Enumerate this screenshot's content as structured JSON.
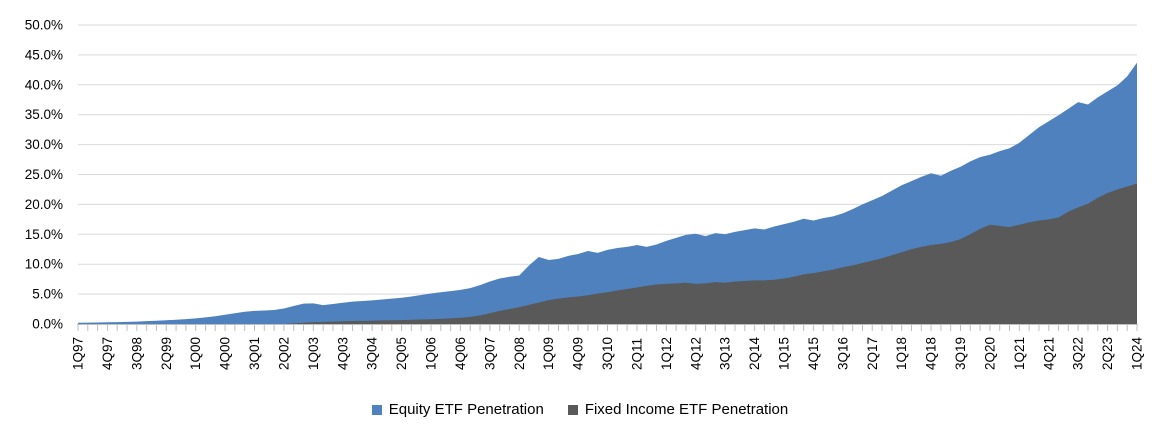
{
  "chart_data": {
    "type": "area",
    "title": "",
    "x_frequency": "quarterly",
    "x_start": "1Q97",
    "x_end": "1Q24",
    "x_tick_labels": [
      "1Q97",
      "4Q97",
      "3Q98",
      "2Q99",
      "1Q00",
      "4Q00",
      "3Q01",
      "2Q02",
      "1Q03",
      "4Q03",
      "3Q04",
      "2Q05",
      "1Q06",
      "4Q06",
      "3Q07",
      "2Q08",
      "1Q09",
      "4Q09",
      "3Q10",
      "2Q11",
      "1Q12",
      "4Q12",
      "3Q13",
      "2Q14",
      "1Q15",
      "4Q15",
      "3Q16",
      "2Q17",
      "1Q18",
      "4Q18",
      "3Q19",
      "2Q20",
      "1Q21",
      "4Q21",
      "3Q22",
      "2Q23",
      "1Q24"
    ],
    "x_label_every_n_points": 3,
    "y_tick_labels": [
      "0.0%",
      "5.0%",
      "10.0%",
      "15.0%",
      "20.0%",
      "25.0%",
      "30.0%",
      "35.0%",
      "40.0%",
      "45.0%",
      "50.0%"
    ],
    "ylim": [
      0,
      50
    ],
    "y_unit": "%",
    "grid": "horizontal",
    "legend_position": "bottom",
    "overlap_mode": "overlaid-not-stacked",
    "colors": {
      "equity": "#4E81BD",
      "fixed_income": "#595959",
      "gridline": "#D9D9D9",
      "axis": "#BFBFBF",
      "text": "#000000"
    },
    "series": [
      {
        "name": "Equity ETF Penetration",
        "color": "#4E81BD",
        "values": [
          0.2,
          0.22,
          0.25,
          0.3,
          0.32,
          0.36,
          0.4,
          0.48,
          0.55,
          0.62,
          0.72,
          0.82,
          0.95,
          1.1,
          1.3,
          1.55,
          1.8,
          2.05,
          2.2,
          2.25,
          2.35,
          2.6,
          3.0,
          3.4,
          3.45,
          3.15,
          3.35,
          3.55,
          3.75,
          3.85,
          3.95,
          4.1,
          4.25,
          4.4,
          4.6,
          4.85,
          5.1,
          5.3,
          5.5,
          5.7,
          6.0,
          6.5,
          7.1,
          7.6,
          7.9,
          8.1,
          9.8,
          11.2,
          10.7,
          10.9,
          11.4,
          11.7,
          12.2,
          11.9,
          12.4,
          12.7,
          12.9,
          13.2,
          12.9,
          13.3,
          13.9,
          14.4,
          14.9,
          15.1,
          14.7,
          15.2,
          15.0,
          15.4,
          15.7,
          16.0,
          15.8,
          16.3,
          16.7,
          17.1,
          17.6,
          17.3,
          17.7,
          18.0,
          18.5,
          19.2,
          20.0,
          20.7,
          21.4,
          22.3,
          23.2,
          23.9,
          24.6,
          25.2,
          24.8,
          25.6,
          26.3,
          27.2,
          27.9,
          28.3,
          28.9,
          29.4,
          30.3,
          31.6,
          32.9,
          33.9,
          34.9,
          36.0,
          37.1,
          36.7,
          37.9,
          38.9,
          39.9,
          41.4,
          43.7
        ]
      },
      {
        "name": "Fixed Income ETF Penetration",
        "color": "#595959",
        "values": [
          0,
          0,
          0,
          0,
          0,
          0,
          0,
          0,
          0,
          0,
          0,
          0,
          0,
          0,
          0,
          0,
          0,
          0,
          0,
          0,
          0,
          0,
          0.1,
          0.2,
          0.3,
          0.35,
          0.4,
          0.45,
          0.5,
          0.52,
          0.55,
          0.6,
          0.62,
          0.65,
          0.7,
          0.75,
          0.8,
          0.85,
          0.95,
          1.05,
          1.2,
          1.45,
          1.8,
          2.2,
          2.5,
          2.8,
          3.2,
          3.6,
          4.0,
          4.25,
          4.45,
          4.6,
          4.8,
          5.1,
          5.3,
          5.6,
          5.85,
          6.1,
          6.4,
          6.6,
          6.7,
          6.8,
          6.9,
          6.7,
          6.8,
          7.0,
          6.9,
          7.1,
          7.2,
          7.3,
          7.3,
          7.4,
          7.6,
          7.9,
          8.3,
          8.5,
          8.8,
          9.1,
          9.5,
          9.8,
          10.2,
          10.6,
          11.0,
          11.5,
          12.0,
          12.5,
          12.9,
          13.2,
          13.4,
          13.7,
          14.2,
          15.0,
          15.9,
          16.6,
          16.4,
          16.2,
          16.6,
          17.0,
          17.3,
          17.5,
          17.8,
          18.8,
          19.5,
          20.1,
          21.1,
          21.9,
          22.5,
          23.0,
          23.5
        ]
      }
    ]
  }
}
